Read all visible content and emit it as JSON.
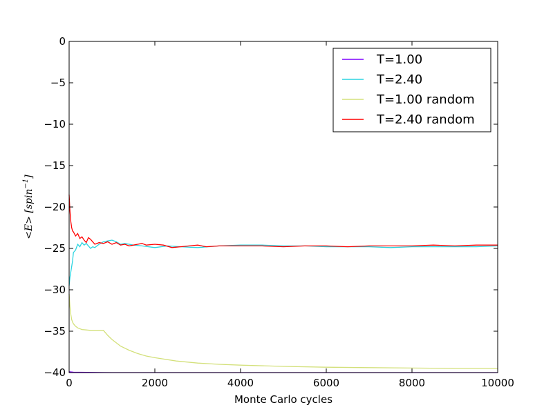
{
  "chart_data": {
    "type": "line",
    "title": "",
    "xlabel": "Monte Carlo cycles",
    "ylabel": "<E> [spin^-1]",
    "ylabel_parts": {
      "base": "<E> [spin",
      "exp": "−1",
      "close": "]"
    },
    "xlim": [
      0,
      10000
    ],
    "ylim": [
      -40,
      0
    ],
    "xticks": [
      0,
      2000,
      4000,
      6000,
      8000,
      10000
    ],
    "yticks": [
      0,
      -5,
      -10,
      -15,
      -20,
      -25,
      -30,
      -35,
      -40
    ],
    "xtick_labels": [
      "0",
      "2000",
      "4000",
      "6000",
      "8000",
      "10000"
    ],
    "ytick_labels": [
      "0",
      "−5",
      "−10",
      "−15",
      "−20",
      "−25",
      "−30",
      "−35",
      "−40"
    ],
    "grid": false,
    "legend_position": "top-right",
    "series": [
      {
        "name": "T=1.00",
        "color": "#7f00ff",
        "x": [
          0,
          100,
          1000,
          10000
        ],
        "y": [
          -39.9,
          -39.95,
          -40.0,
          -40.0
        ]
      },
      {
        "name": "T=2.40",
        "color": "#2ad4e0",
        "x": [
          0,
          20,
          50,
          80,
          100,
          150,
          200,
          250,
          300,
          350,
          400,
          450,
          500,
          550,
          600,
          700,
          800,
          900,
          1000,
          1100,
          1200,
          1300,
          1500,
          1700,
          2000,
          2300,
          2600,
          3000,
          3500,
          4000,
          4500,
          5000,
          5500,
          6000,
          6500,
          7000,
          7500,
          8000,
          8500,
          9000,
          9500,
          10000
        ],
        "y": [
          -29.5,
          -28.5,
          -27.5,
          -26.5,
          -25.5,
          -25.2,
          -24.5,
          -24.8,
          -24.3,
          -24.6,
          -24.4,
          -24.7,
          -25.0,
          -24.8,
          -24.9,
          -24.5,
          -24.2,
          -24.1,
          -24.0,
          -24.2,
          -24.5,
          -24.4,
          -24.6,
          -24.7,
          -24.9,
          -24.7,
          -24.8,
          -24.9,
          -24.7,
          -24.6,
          -24.6,
          -24.7,
          -24.7,
          -24.8,
          -24.8,
          -24.8,
          -24.9,
          -24.8,
          -24.8,
          -24.8,
          -24.8,
          -24.7
        ]
      },
      {
        "name": "T=1.00 random",
        "color": "#d3e07a",
        "x": [
          0,
          20,
          40,
          60,
          80,
          100,
          150,
          200,
          300,
          400,
          500,
          600,
          700,
          800,
          900,
          1000,
          1200,
          1400,
          1600,
          1800,
          2000,
          2500,
          3000,
          3500,
          4000,
          5000,
          6000,
          7000,
          8000,
          9000,
          10000
        ],
        "y": [
          -30.5,
          -32.0,
          -33.0,
          -33.6,
          -33.9,
          -34.1,
          -34.4,
          -34.6,
          -34.8,
          -34.85,
          -34.9,
          -34.9,
          -34.9,
          -34.9,
          -35.5,
          -36.0,
          -36.8,
          -37.3,
          -37.7,
          -38.0,
          -38.2,
          -38.6,
          -38.85,
          -39.0,
          -39.1,
          -39.25,
          -39.35,
          -39.4,
          -39.45,
          -39.5,
          -39.5
        ]
      },
      {
        "name": "T=2.40 random",
        "color": "#ff0000",
        "x": [
          0,
          20,
          40,
          60,
          80,
          100,
          150,
          200,
          250,
          300,
          350,
          400,
          450,
          500,
          550,
          600,
          700,
          800,
          900,
          1000,
          1100,
          1200,
          1300,
          1400,
          1500,
          1600,
          1700,
          1800,
          2000,
          2200,
          2400,
          2600,
          2800,
          3000,
          3200,
          3500,
          4000,
          4500,
          5000,
          5500,
          6000,
          6500,
          7000,
          7500,
          8000,
          8500,
          9000,
          9500,
          10000
        ],
        "y": [
          -18.5,
          -20.5,
          -21.8,
          -22.5,
          -22.9,
          -23.0,
          -23.5,
          -23.2,
          -23.8,
          -23.6,
          -24.0,
          -24.3,
          -23.7,
          -23.9,
          -24.2,
          -24.5,
          -24.3,
          -24.4,
          -24.2,
          -24.5,
          -24.3,
          -24.6,
          -24.5,
          -24.7,
          -24.6,
          -24.5,
          -24.4,
          -24.6,
          -24.5,
          -24.6,
          -24.9,
          -24.8,
          -24.7,
          -24.6,
          -24.8,
          -24.7,
          -24.7,
          -24.7,
          -24.8,
          -24.7,
          -24.7,
          -24.8,
          -24.7,
          -24.7,
          -24.7,
          -24.6,
          -24.7,
          -24.6,
          -24.6
        ]
      }
    ]
  }
}
